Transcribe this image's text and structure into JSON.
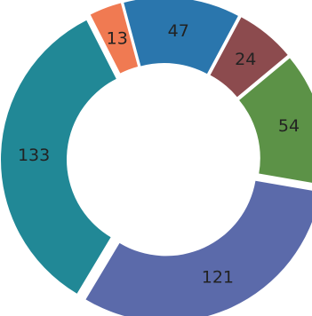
{
  "chart_data": {
    "type": "pie",
    "variant": "donut-exploded",
    "values": [
      47,
      24,
      54,
      121,
      133,
      13
    ],
    "colors": [
      "#2a76ad",
      "#8c4b4e",
      "#5c9247",
      "#5b6aaa",
      "#218896",
      "#f07a52"
    ],
    "labels": [
      "47",
      "24",
      "54",
      "121",
      "133",
      "13"
    ]
  }
}
